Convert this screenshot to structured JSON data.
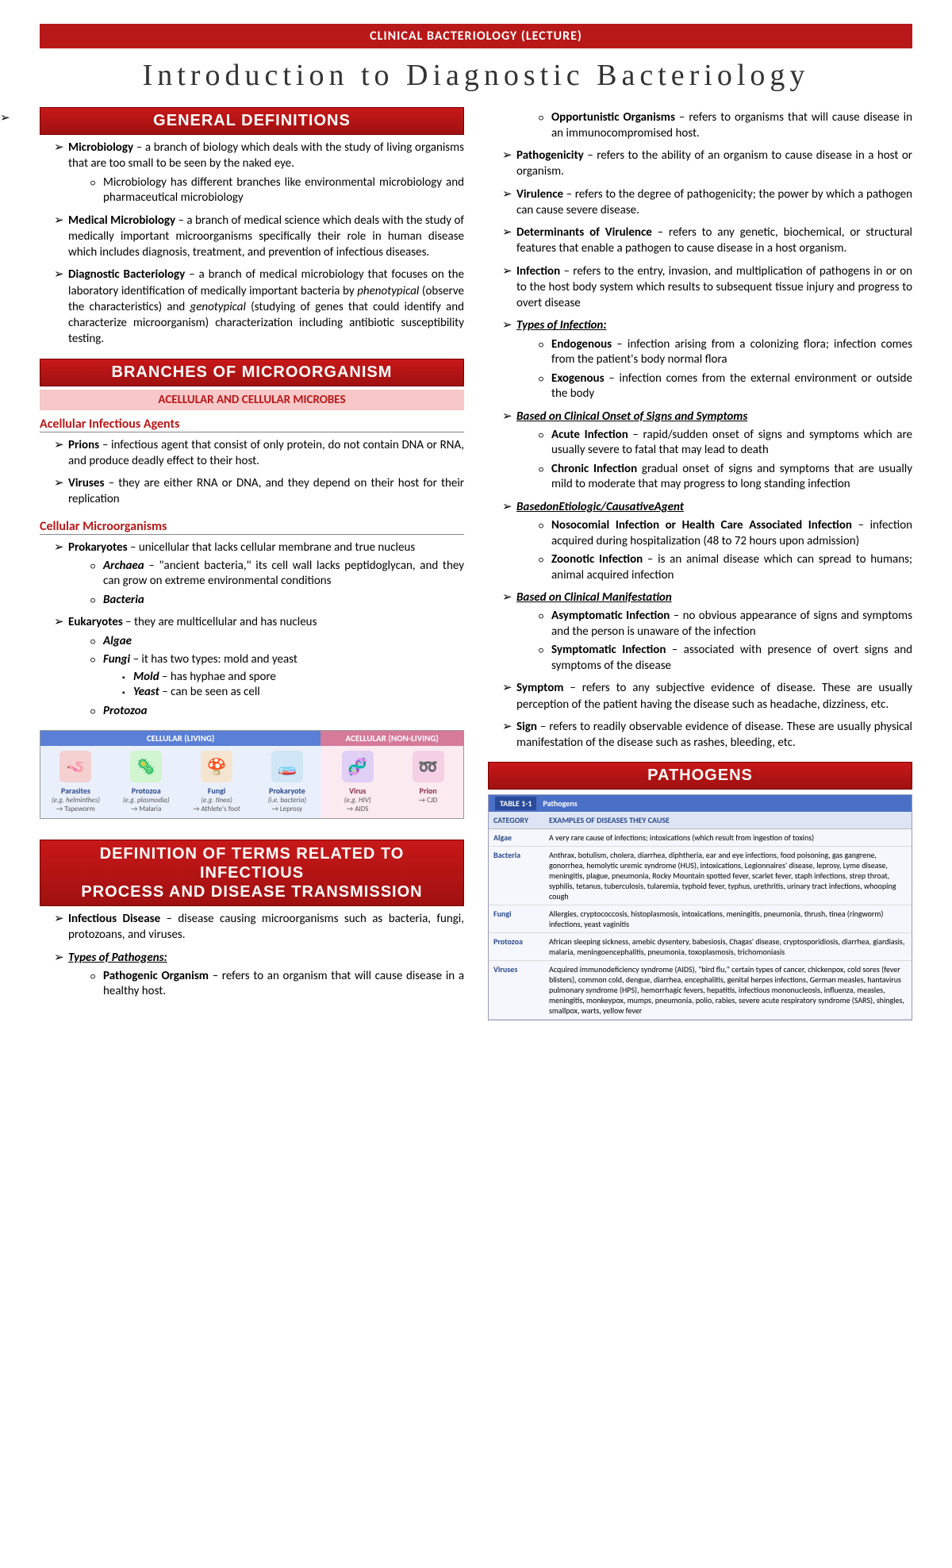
{
  "topBanner": "CLINICAL BACTERIOLOGY (LECTURE)",
  "scriptTitle": "Introduction to Diagnostic Bacteriology",
  "h_general": "GENERAL DEFINITIONS",
  "h_branches": "BRANCHES OF MICROORGANISM",
  "h_acell": "ACELLULAR AND CELLULAR MICROBES",
  "h_acellAgents": "Acellular Infectious Agents",
  "h_cellMicro": "Cellular Microorganisms",
  "h_defterms1": "DEFINITION OF TERMS RELATED TO INFECTIOUS",
  "h_defterms2": "PROCESS AND DISEASE TRANSMISSION",
  "h_pathogens": "PATHOGENS",
  "diag": {
    "cellular": "CELLULAR  (LIVING)",
    "acellular": "ACELLULAR  (NON-LIVING)",
    "cols": [
      {
        "lab": "Parasites",
        "sub": "(e.g. helminthes)",
        "ex": "→ Tapeworm",
        "icon": "🪱",
        "bg": "#f5d0d0"
      },
      {
        "lab": "Protozoa",
        "sub": "(e.g. plasmodia)",
        "ex": "→ Malaria",
        "icon": "🦠",
        "bg": "#d0f5d0"
      },
      {
        "lab": "Fungi",
        "sub": "(e.g. tinea)",
        "ex": "→ Athlete's foot",
        "icon": "🍄",
        "bg": "#f5e5d0"
      },
      {
        "lab": "Prokaryote",
        "sub": "(i.e. bacteria)",
        "ex": "→ Leprosy",
        "icon": "🧫",
        "bg": "#d0e5f5"
      },
      {
        "lab": "Virus",
        "sub": "(e.g. HIV)",
        "ex": "→ AIDS",
        "icon": "🧬",
        "bg": "#e0d0f5"
      },
      {
        "lab": "Prion",
        "sub": "",
        "ex": "→ CJD",
        "icon": "➿",
        "bg": "#f5d0e5"
      }
    ]
  },
  "tbl": {
    "num": "TABLE 1-1",
    "title": "Pathogens",
    "h1": "CATEGORY",
    "h2": "EXAMPLES OF DISEASES THEY CAUSE",
    "rows": [
      {
        "c": "Algae",
        "d": "A very rare cause of infections; intoxications (which result from ingestion of toxins)"
      },
      {
        "c": "Bacteria",
        "d": "Anthrax, botulism, cholera, diarrhea, diphtheria, ear and eye infections, food poisoning, gas gangrene, gonorrhea, hemolytic uremic syndrome (HUS), intoxications, Legionnaires' disease, leprosy, Lyme disease, meningitis, plague, pneumonia, Rocky Mountain spotted fever, scarlet fever, staph infections, strep throat, syphilis, tetanus, tuberculosis, tularemia, typhoid fever, typhus, urethritis, urinary tract infections, whooping cough"
      },
      {
        "c": "Fungi",
        "d": "Allergies, cryptococcosis, histoplasmosis, intoxications, meningitis, pneumonia, thrush, tinea (ringworm) infections, yeast vaginitis"
      },
      {
        "c": "Protozoa",
        "d": "African sleeping sickness, amebic dysentery, babesiosis, Chagas' disease, cryptosporidiosis, diarrhea, giardiasis, malaria, meningoencephalitis, pneumonia, toxoplasmosis, trichomoniasis"
      },
      {
        "c": "Viruses",
        "d": "Acquired immunodeficiency syndrome (AIDS), \"bird flu,\" certain types of cancer, chickenpox, cold sores (fever blisters), common cold, dengue, diarrhea, encephalitis, genital herpes infections, German measles, hantavirus pulmonary syndrome (HPS), hemorrhagic fevers, hepatitis, infectious mononucleosis, influenza, measles, meningitis, monkeypox, mumps, pneumonia, polio, rabies, severe acute respiratory syndrome (SARS), shingles, smallpox, warts, yellow fever"
      }
    ]
  }
}
